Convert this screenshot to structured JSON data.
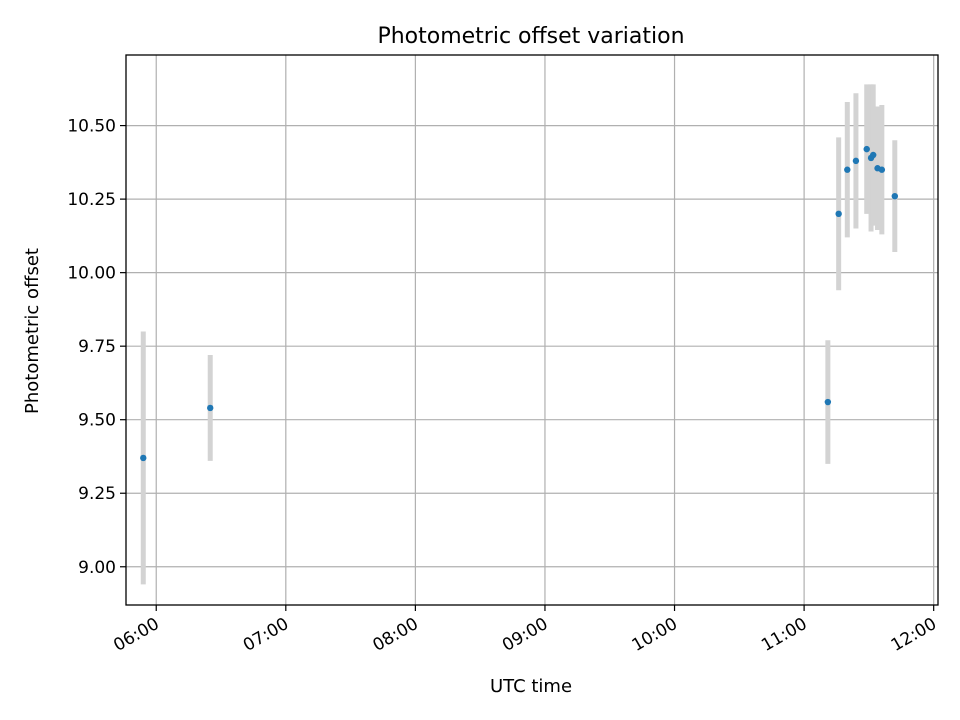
{
  "chart_data": {
    "type": "scatter",
    "title": "Photometric offset variation",
    "xlabel": "UTC time",
    "ylabel": "Photometric offset",
    "x_axis": {
      "kind": "time",
      "range": [
        "05:46",
        "12:02"
      ],
      "ticks": [
        "06:00",
        "07:00",
        "08:00",
        "09:00",
        "10:00",
        "11:00",
        "12:00"
      ],
      "tick_label_rotation": "30 degrees"
    },
    "y_axis": {
      "range": [
        8.87,
        10.74
      ],
      "ticks": [
        9.0,
        9.25,
        9.5,
        9.75,
        10.0,
        10.25,
        10.5
      ],
      "tick_labels": [
        "9.00",
        "9.25",
        "9.50",
        "9.75",
        "10.00",
        "10.25",
        "10.50"
      ]
    },
    "grid": true,
    "legend": "none",
    "colors": {
      "point": "#1f77b4",
      "error_bar": "#d3d3d3",
      "grid": "#b0b0b0",
      "axis": "#000000"
    },
    "series": [
      {
        "points": [
          {
            "x": "05:54",
            "y": 9.37,
            "yerr": 0.43
          },
          {
            "x": "06:25",
            "y": 9.54,
            "yerr": 0.18
          },
          {
            "x": "11:11",
            "y": 9.56,
            "yerr": 0.21
          },
          {
            "x": "11:16",
            "y": 10.2,
            "yerr": 0.26
          },
          {
            "x": "11:20",
            "y": 10.35,
            "yerr": 0.23
          },
          {
            "x": "11:24",
            "y": 10.38,
            "yerr": 0.23
          },
          {
            "x": "11:29",
            "y": 10.42,
            "yerr": 0.22
          },
          {
            "x": "11:31",
            "y": 10.39,
            "yerr": 0.25
          },
          {
            "x": "11:32",
            "y": 10.4,
            "yerr": 0.24
          },
          {
            "x": "11:34",
            "y": 10.355,
            "yerr": 0.21
          },
          {
            "x": "11:36",
            "y": 10.35,
            "yerr": 0.22
          },
          {
            "x": "11:42",
            "y": 10.26,
            "yerr": 0.19
          }
        ]
      }
    ]
  }
}
